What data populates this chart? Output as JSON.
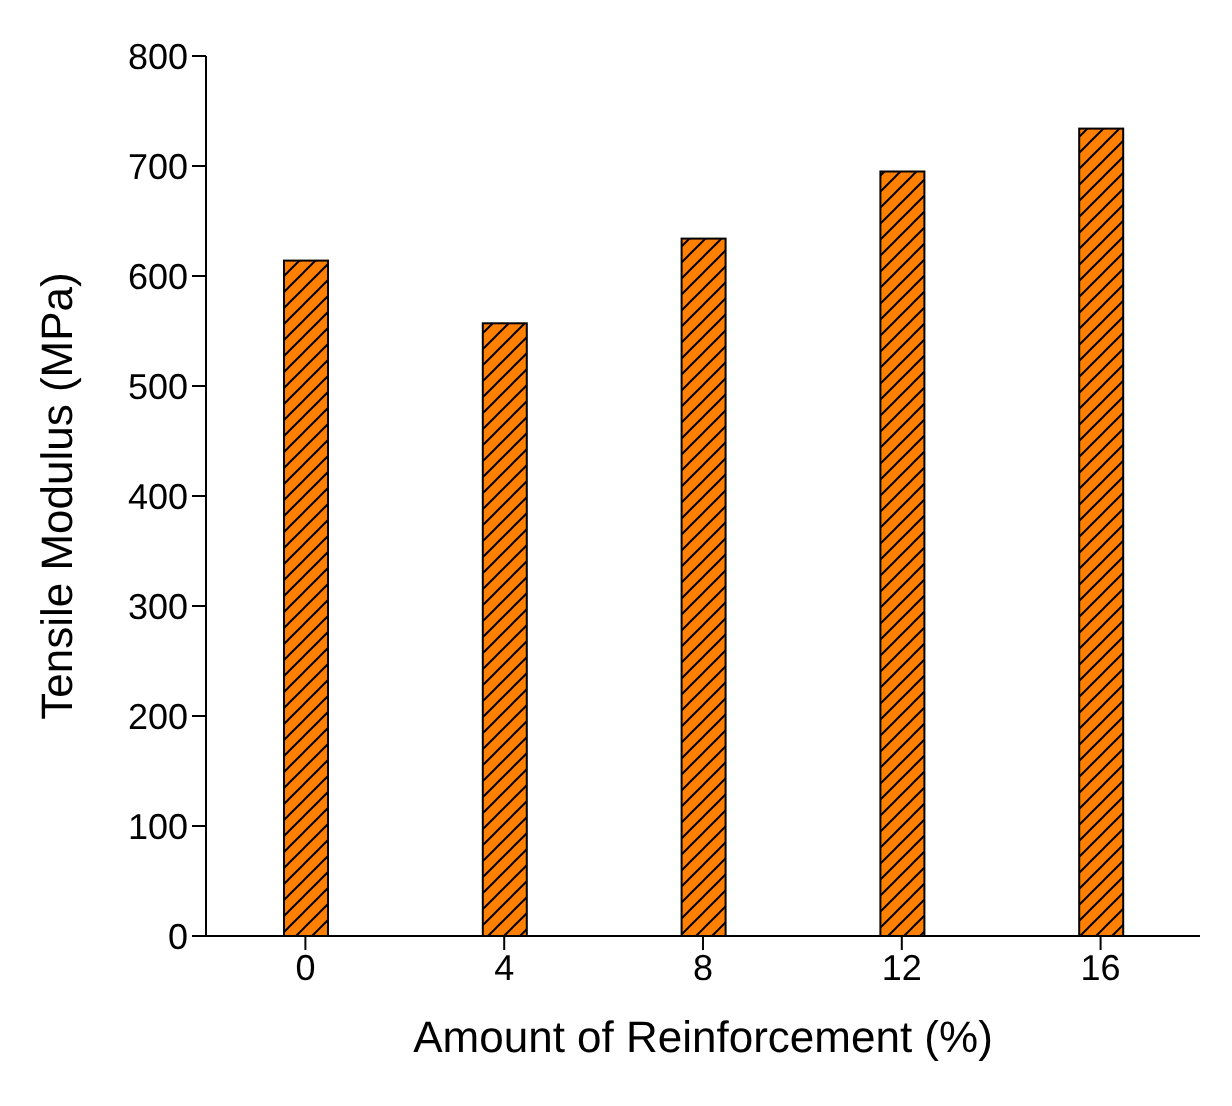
{
  "chart_data": {
    "type": "bar",
    "xlabel": "Amount of Reinforcement (%)",
    "ylabel": "Tensile Modulus (MPa)",
    "categories": [
      "0",
      "4",
      "8",
      "12",
      "16"
    ],
    "values": [
      614,
      557,
      634,
      695,
      734
    ],
    "color": "#ff8000",
    "ylim": [
      0,
      800
    ],
    "yticks": [
      0,
      100,
      200,
      300,
      400,
      500,
      600,
      700,
      800
    ],
    "grid": false
  }
}
